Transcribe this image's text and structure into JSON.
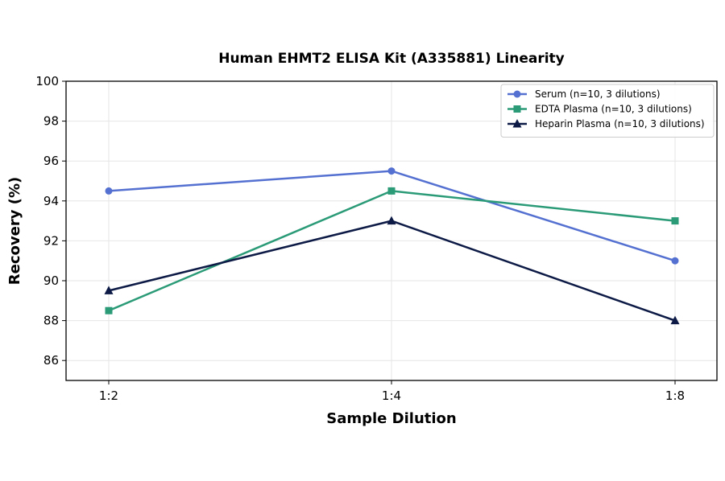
{
  "chart_data": {
    "type": "line",
    "title": "Human EHMT2 ELISA Kit (A335881) Linearity",
    "xlabel": "Sample Dilution",
    "ylabel": "Recovery (%)",
    "categories": [
      "1:2",
      "1:4",
      "1:8"
    ],
    "ylim": [
      85,
      100
    ],
    "yticks": [
      86,
      88,
      90,
      92,
      94,
      96,
      98,
      100
    ],
    "grid": true,
    "legend_position": "top-right",
    "series": [
      {
        "name": "Serum (n=10, 3 dilutions)",
        "values": [
          94.5,
          95.5,
          91.0
        ],
        "color": "#5470d0",
        "marker": "circle"
      },
      {
        "name": "EDTA Plasma (n=10, 3 dilutions)",
        "values": [
          88.5,
          94.5,
          93.0
        ],
        "color": "#2a9a77",
        "marker": "square"
      },
      {
        "name": "Heparin Plasma (n=10, 3 dilutions)",
        "values": [
          89.5,
          93.0,
          88.0
        ],
        "color": "#0c1a45",
        "marker": "triangle"
      }
    ]
  }
}
